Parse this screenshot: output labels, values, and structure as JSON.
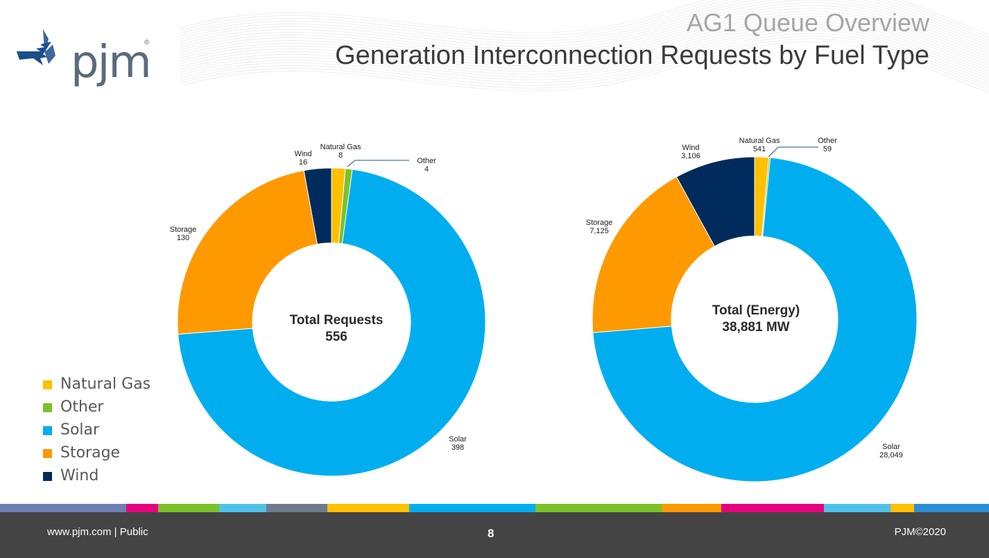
{
  "header": {
    "supertitle": "AG1 Queue Overview",
    "title": "Generation Interconnection Requests by Fuel Type",
    "logo_text": "pjm",
    "logo_mark": "®"
  },
  "chart_data": [
    {
      "type": "pie",
      "center_label": [
        "Total Requests",
        "556"
      ],
      "slices": [
        {
          "label": "Natural Gas",
          "value": 8,
          "value_text": "8",
          "color": "#FFC000"
        },
        {
          "label": "Other",
          "value": 4,
          "value_text": "4",
          "color": "#7DC12A"
        },
        {
          "label": "Solar",
          "value": 398,
          "value_text": "398",
          "color": "#00AEEF"
        },
        {
          "label": "Storage",
          "value": 130,
          "value_text": "130",
          "color": "#FF9900"
        },
        {
          "label": "Wind",
          "value": 16,
          "value_text": "16",
          "color": "#002B5C"
        }
      ]
    },
    {
      "type": "pie",
      "center_label": [
        "Total (Energy)",
        "38,881 MW"
      ],
      "slices": [
        {
          "label": "Natural Gas",
          "value": 541,
          "value_text": "541",
          "color": "#FFC000"
        },
        {
          "label": "Other",
          "value": 59,
          "value_text": "59",
          "color": "#7DC12A"
        },
        {
          "label": "Solar",
          "value": 28049,
          "value_text": "28,049",
          "color": "#00AEEF"
        },
        {
          "label": "Storage",
          "value": 7125,
          "value_text": "7,125",
          "color": "#FF9900"
        },
        {
          "label": "Wind",
          "value": 3106,
          "value_text": "3,106",
          "color": "#002B5C"
        }
      ]
    }
  ],
  "legend": [
    {
      "label": "Natural Gas",
      "color": "#FFC000"
    },
    {
      "label": "Other",
      "color": "#7DC12A"
    },
    {
      "label": "Solar",
      "color": "#00AEEF"
    },
    {
      "label": "Storage",
      "color": "#FF9900"
    },
    {
      "label": "Wind",
      "color": "#002B5C"
    }
  ],
  "colorbar": [
    "#6E7FB6",
    "#E6007E",
    "#7DC12A",
    "#4FC1E9",
    "#6D7B8D",
    "#FFC000",
    "#00AEEF",
    "#7DC12A",
    "#FF9900",
    "#E6007E",
    "#4FC1E9",
    "#FFC000",
    "#2C8FD6"
  ],
  "footer": {
    "left": "www.pjm.com | Public",
    "page": "8",
    "right": "PJM©2020"
  }
}
